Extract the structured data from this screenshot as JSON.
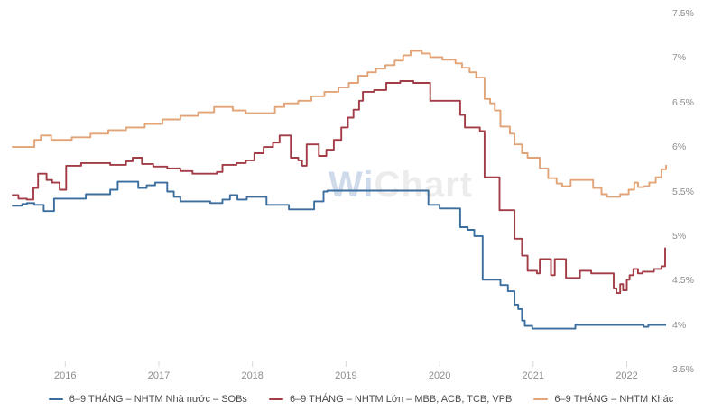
{
  "watermark": {
    "part1": "Wi",
    "part2": "Chart"
  },
  "axes": {
    "y_tick_color": "#8d8d8d",
    "x_tick_color": "#8d8d8d",
    "tick_mark_color": "#d8d8d8"
  },
  "chart_data": {
    "type": "line",
    "subtype": "step",
    "title": "",
    "xlabel": "",
    "ylabel": "",
    "x_unit": "decimal-year",
    "xlim": [
      2015.4,
      2022.46
    ],
    "ylim": [
      3.5,
      7.5
    ],
    "grid": false,
    "legend_position": "bottom",
    "x_ticks": [
      "2016",
      "2017",
      "2018",
      "2019",
      "2020",
      "2021",
      "2022"
    ],
    "y_ticks": [
      "7.5%",
      "7%",
      "6.5%",
      "6%",
      "5.5%",
      "5%",
      "4.5%",
      "4%",
      "3.5%"
    ],
    "series": [
      {
        "id": "sobs",
        "name": "6–9 THÁNG – NHTM Nhà nước – SOBs",
        "color": "#3b6e9e",
        "points": [
          [
            2015.43,
            5.34
          ],
          [
            2015.54,
            5.36
          ],
          [
            2015.59,
            5.37
          ],
          [
            2015.67,
            5.35
          ],
          [
            2015.77,
            5.28
          ],
          [
            2015.88,
            5.42
          ],
          [
            2016.22,
            5.47
          ],
          [
            2016.48,
            5.52
          ],
          [
            2016.56,
            5.61
          ],
          [
            2016.78,
            5.54
          ],
          [
            2016.87,
            5.57
          ],
          [
            2016.96,
            5.6
          ],
          [
            2017.09,
            5.5
          ],
          [
            2017.16,
            5.44
          ],
          [
            2017.23,
            5.39
          ],
          [
            2017.55,
            5.37
          ],
          [
            2017.68,
            5.41
          ],
          [
            2017.76,
            5.46
          ],
          [
            2017.84,
            5.41
          ],
          [
            2017.94,
            5.44
          ],
          [
            2018.15,
            5.35
          ],
          [
            2018.39,
            5.3
          ],
          [
            2018.66,
            5.39
          ],
          [
            2018.76,
            5.5
          ],
          [
            2018.8,
            5.51
          ],
          [
            2019.88,
            5.35
          ],
          [
            2020.0,
            5.31
          ],
          [
            2020.22,
            5.1
          ],
          [
            2020.3,
            5.07
          ],
          [
            2020.37,
            5.0
          ],
          [
            2020.46,
            4.51
          ],
          [
            2020.65,
            4.45
          ],
          [
            2020.73,
            4.38
          ],
          [
            2020.8,
            4.23
          ],
          [
            2020.84,
            4.18
          ],
          [
            2020.88,
            4.05
          ],
          [
            2020.91,
            3.99
          ],
          [
            2020.99,
            3.96
          ],
          [
            2021.45,
            4.0
          ],
          [
            2022.15,
            4.0
          ],
          [
            2022.18,
            3.98
          ],
          [
            2022.23,
            4.0
          ],
          [
            2022.42,
            4.0
          ]
        ]
      },
      {
        "id": "large-banks",
        "name": "6–9 THÁNG – NHTM Lớn – MBB, ACB, TCB, VPB",
        "color": "#a23c46",
        "points": [
          [
            2015.43,
            5.46
          ],
          [
            2015.5,
            5.42
          ],
          [
            2015.59,
            5.41
          ],
          [
            2015.66,
            5.54
          ],
          [
            2015.71,
            5.7
          ],
          [
            2015.8,
            5.63
          ],
          [
            2015.86,
            5.6
          ],
          [
            2015.94,
            5.52
          ],
          [
            2016.01,
            5.79
          ],
          [
            2016.17,
            5.82
          ],
          [
            2016.48,
            5.8
          ],
          [
            2016.65,
            5.84
          ],
          [
            2016.72,
            5.88
          ],
          [
            2016.82,
            5.81
          ],
          [
            2016.94,
            5.78
          ],
          [
            2017.09,
            5.76
          ],
          [
            2017.23,
            5.73
          ],
          [
            2017.36,
            5.7
          ],
          [
            2017.62,
            5.72
          ],
          [
            2017.68,
            5.8
          ],
          [
            2017.83,
            5.82
          ],
          [
            2017.93,
            5.85
          ],
          [
            2018.02,
            5.93
          ],
          [
            2018.12,
            6.0
          ],
          [
            2018.22,
            6.05
          ],
          [
            2018.29,
            6.13
          ],
          [
            2018.41,
            5.88
          ],
          [
            2018.49,
            5.85
          ],
          [
            2018.53,
            5.79
          ],
          [
            2018.58,
            6.03
          ],
          [
            2018.71,
            5.9
          ],
          [
            2018.79,
            5.97
          ],
          [
            2018.87,
            6.08
          ],
          [
            2018.95,
            6.22
          ],
          [
            2019.02,
            6.33
          ],
          [
            2019.08,
            6.42
          ],
          [
            2019.14,
            6.52
          ],
          [
            2019.18,
            6.62
          ],
          [
            2019.3,
            6.64
          ],
          [
            2019.43,
            6.72
          ],
          [
            2019.58,
            6.74
          ],
          [
            2019.72,
            6.72
          ],
          [
            2019.9,
            6.52
          ],
          [
            2020.22,
            6.36
          ],
          [
            2020.27,
            6.22
          ],
          [
            2020.43,
            6.18
          ],
          [
            2020.48,
            5.66
          ],
          [
            2020.64,
            5.29
          ],
          [
            2020.8,
            4.97
          ],
          [
            2020.88,
            4.78
          ],
          [
            2020.94,
            4.61
          ],
          [
            2021.04,
            4.58
          ],
          [
            2021.07,
            4.74
          ],
          [
            2021.19,
            4.56
          ],
          [
            2021.23,
            4.74
          ],
          [
            2021.35,
            4.53
          ],
          [
            2021.5,
            4.61
          ],
          [
            2021.62,
            4.58
          ],
          [
            2021.86,
            4.41
          ],
          [
            2021.89,
            4.36
          ],
          [
            2021.93,
            4.46
          ],
          [
            2021.96,
            4.39
          ],
          [
            2022.0,
            4.51
          ],
          [
            2022.03,
            4.56
          ],
          [
            2022.07,
            4.63
          ],
          [
            2022.12,
            4.58
          ],
          [
            2022.17,
            4.6
          ],
          [
            2022.29,
            4.63
          ],
          [
            2022.37,
            4.66
          ],
          [
            2022.41,
            4.87
          ]
        ]
      },
      {
        "id": "other-banks",
        "name": "6–9 THÁNG – NHTM Khác",
        "color": "#e2a376",
        "points": [
          [
            2015.43,
            6.0
          ],
          [
            2015.67,
            6.08
          ],
          [
            2015.74,
            6.13
          ],
          [
            2015.85,
            6.08
          ],
          [
            2016.07,
            6.11
          ],
          [
            2016.27,
            6.15
          ],
          [
            2016.46,
            6.19
          ],
          [
            2016.65,
            6.22
          ],
          [
            2016.85,
            6.26
          ],
          [
            2017.04,
            6.31
          ],
          [
            2017.23,
            6.35
          ],
          [
            2017.42,
            6.39
          ],
          [
            2017.59,
            6.45
          ],
          [
            2017.79,
            6.41
          ],
          [
            2017.93,
            6.38
          ],
          [
            2018.24,
            6.45
          ],
          [
            2018.34,
            6.49
          ],
          [
            2018.49,
            6.52
          ],
          [
            2018.63,
            6.57
          ],
          [
            2018.77,
            6.62
          ],
          [
            2018.92,
            6.67
          ],
          [
            2019.03,
            6.72
          ],
          [
            2019.13,
            6.8
          ],
          [
            2019.23,
            6.84
          ],
          [
            2019.32,
            6.88
          ],
          [
            2019.42,
            6.92
          ],
          [
            2019.52,
            6.97
          ],
          [
            2019.61,
            7.03
          ],
          [
            2019.69,
            7.08
          ],
          [
            2019.81,
            7.05
          ],
          [
            2019.9,
            7.01
          ],
          [
            2020.03,
            6.98
          ],
          [
            2020.17,
            6.94
          ],
          [
            2020.24,
            6.89
          ],
          [
            2020.32,
            6.84
          ],
          [
            2020.39,
            6.78
          ],
          [
            2020.48,
            6.54
          ],
          [
            2020.54,
            6.49
          ],
          [
            2020.59,
            6.41
          ],
          [
            2020.65,
            6.23
          ],
          [
            2020.75,
            6.15
          ],
          [
            2020.8,
            6.03
          ],
          [
            2020.88,
            5.93
          ],
          [
            2020.94,
            5.88
          ],
          [
            2021.07,
            5.76
          ],
          [
            2021.16,
            5.65
          ],
          [
            2021.25,
            5.59
          ],
          [
            2021.31,
            5.56
          ],
          [
            2021.4,
            5.63
          ],
          [
            2021.64,
            5.54
          ],
          [
            2021.73,
            5.47
          ],
          [
            2021.79,
            5.44
          ],
          [
            2021.93,
            5.47
          ],
          [
            2022.02,
            5.52
          ],
          [
            2022.08,
            5.6
          ],
          [
            2022.12,
            5.55
          ],
          [
            2022.18,
            5.56
          ],
          [
            2022.24,
            5.6
          ],
          [
            2022.31,
            5.66
          ],
          [
            2022.37,
            5.75
          ],
          [
            2022.42,
            5.8
          ]
        ]
      }
    ]
  }
}
